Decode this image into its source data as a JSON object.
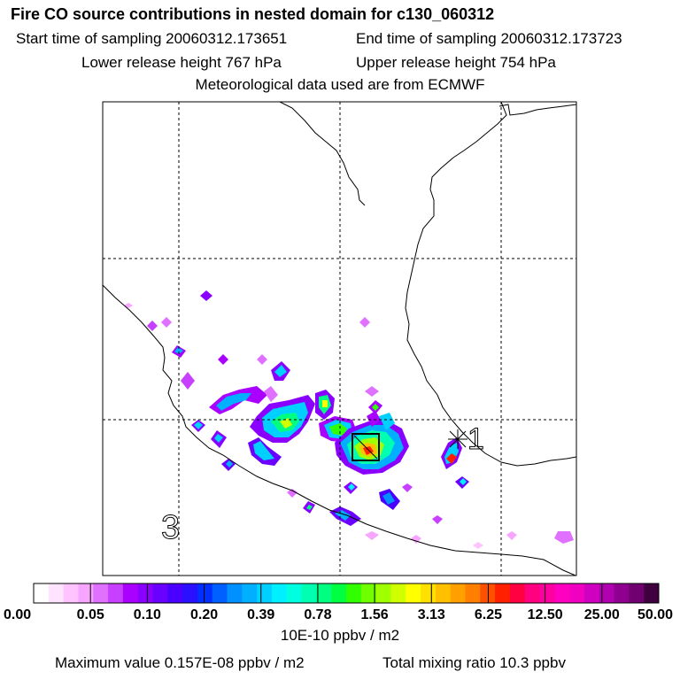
{
  "header": {
    "title": "Fire CO source contributions in nested domain for c130_060312",
    "start_label": "Start time of sampling 20060312.173651",
    "end_label": "End time of sampling 20060312.173723",
    "lower_label": "Lower release height  767 hPa",
    "upper_label": "Upper release height  754 hPa",
    "met_label": "Meteorological data used are from ECMWF"
  },
  "chart_data": {
    "type": "heatmap",
    "title": "Fire CO source contributions in nested domain for c130_060312",
    "colorbar": {
      "unit": "10E-10 ppbv / m2",
      "tick_labels": [
        "0.00",
        "0.05",
        "0.10",
        "0.20",
        "0.39",
        "0.78",
        "1.56",
        "3.13",
        "6.25",
        "12.50",
        "25.00",
        "50.00"
      ],
      "colors": [
        "#ffffff",
        "#ffe3ff",
        "#ffc4ff",
        "#f7a6ff",
        "#e070ff",
        "#c840ff",
        "#a900ff",
        "#8a00ff",
        "#6a00ff",
        "#4a00ff",
        "#2a10ff",
        "#0030ff",
        "#0060ff",
        "#0090ff",
        "#00b0ff",
        "#00d0ff",
        "#00f0ff",
        "#00ffe0",
        "#00ffb0",
        "#00ff80",
        "#00ff40",
        "#30ff00",
        "#70ff00",
        "#a0ff00",
        "#d0ff00",
        "#ffff00",
        "#ffe000",
        "#ffc000",
        "#ffa000",
        "#ff8000",
        "#ff5000",
        "#ff2000",
        "#ff0040",
        "#ff0080",
        "#ff00a0",
        "#ff00c0",
        "#f000c0",
        "#d000c0",
        "#b000b0",
        "#900090",
        "#700070",
        "#400040"
      ]
    },
    "grid": true,
    "markers": [
      {
        "label": "1",
        "symbol": "star"
      },
      {
        "label": "3",
        "symbol": "text"
      }
    ],
    "max_value_label": "Maximum value  0.157E-08 ppbv / m2",
    "total_label": "Total mixing ratio       10.3 ppbv"
  },
  "colors": {
    "frame": "#000000",
    "coast": "#000000",
    "grid": "#000000"
  }
}
